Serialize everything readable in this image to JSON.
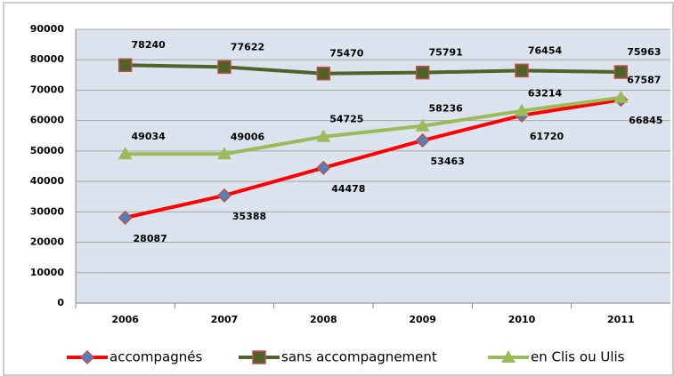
{
  "chart_data": {
    "type": "line",
    "categories": [
      "2006",
      "2007",
      "2008",
      "2009",
      "2010",
      "2011"
    ],
    "series": [
      {
        "name": "accompagnés",
        "color": "#ff0000",
        "marker": "diamond",
        "values": [
          28087,
          35388,
          44478,
          53463,
          61720,
          66845
        ]
      },
      {
        "name": "sans accompagnement",
        "color": "#4f6228",
        "marker": "square",
        "values": [
          78240,
          77622,
          75470,
          75791,
          76454,
          75963
        ]
      },
      {
        "name": "en Clis ou Ulis",
        "color": "#9bbb59",
        "marker": "triangle",
        "values": [
          49034,
          49006,
          54725,
          58236,
          63214,
          67587
        ]
      }
    ],
    "ylim": [
      0,
      90000
    ],
    "yticks": [
      0,
      10000,
      20000,
      30000,
      40000,
      50000,
      60000,
      70000,
      80000,
      90000
    ],
    "grid": true,
    "legend": "bottom"
  }
}
